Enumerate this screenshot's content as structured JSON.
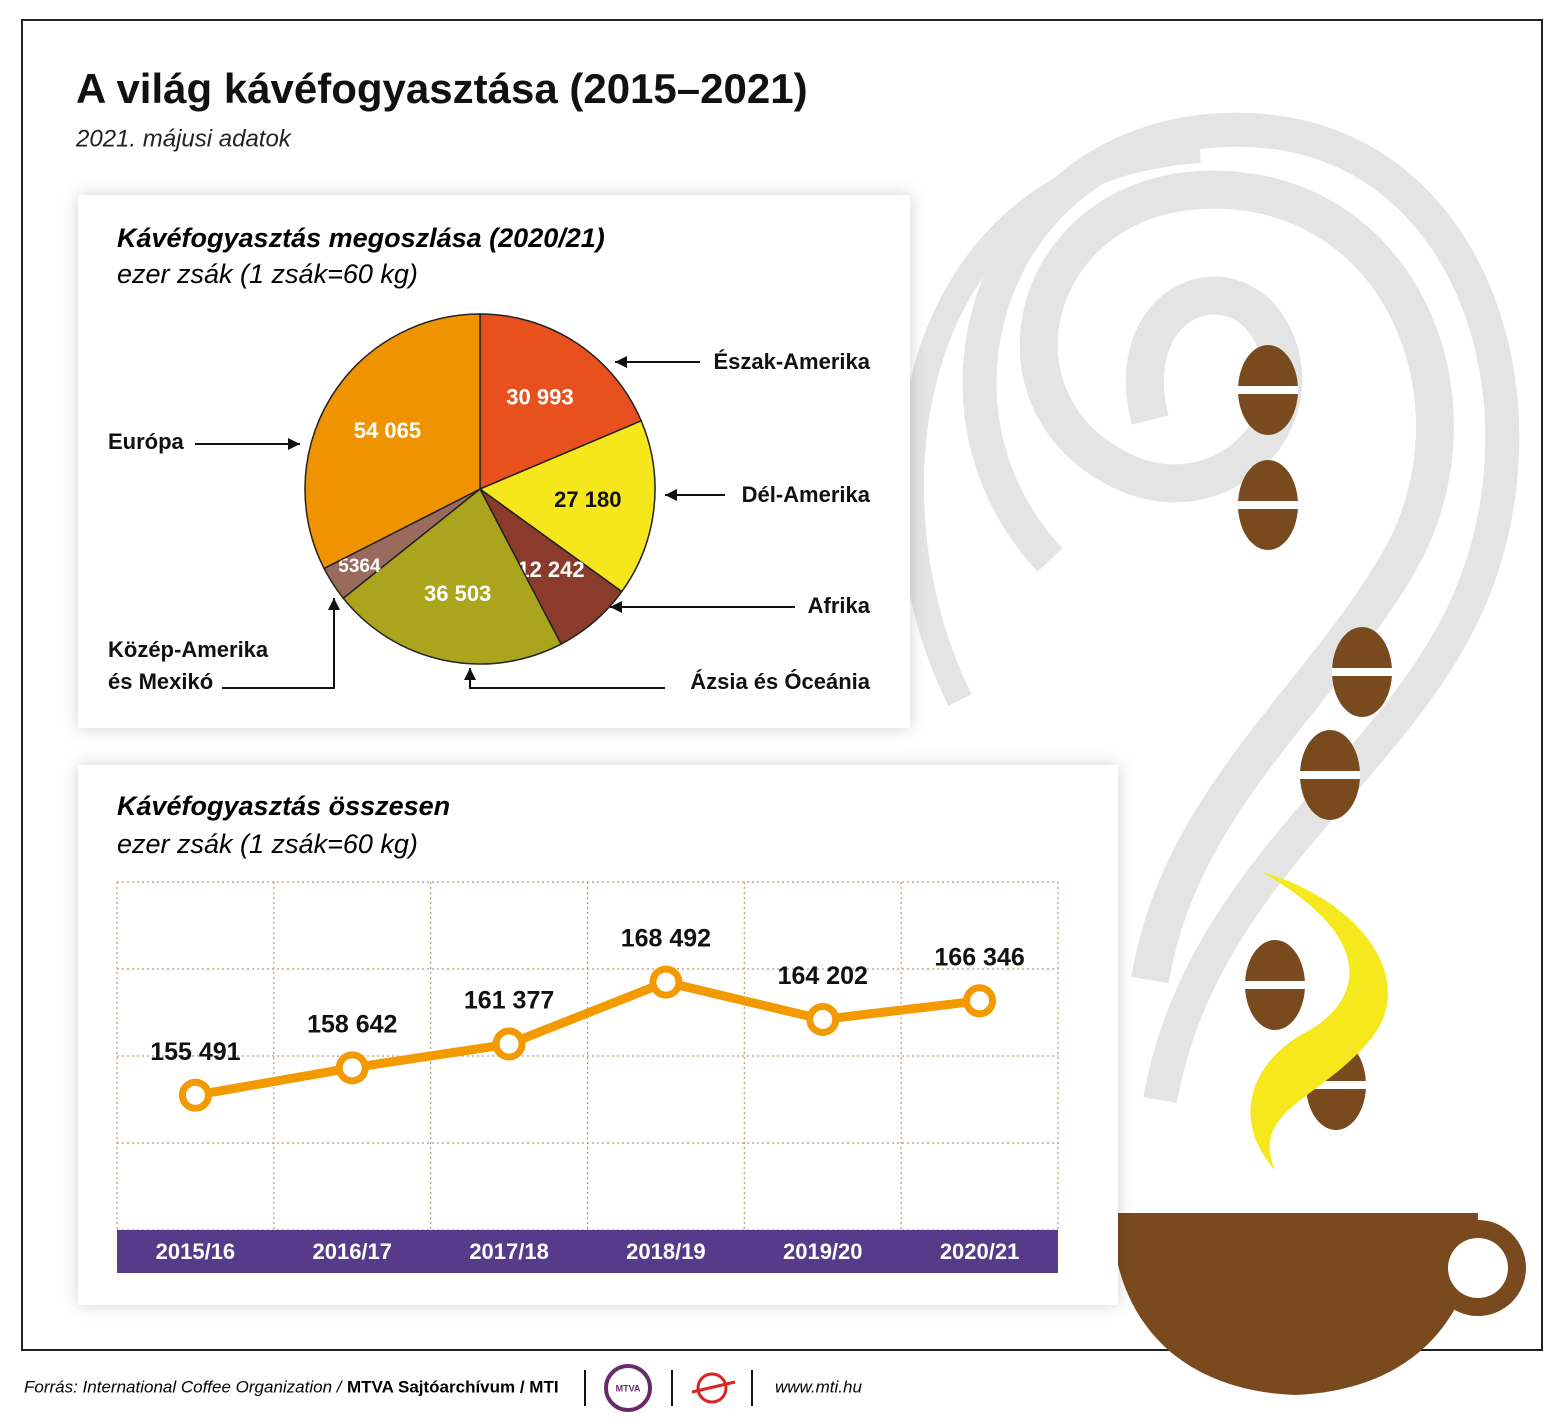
{
  "title": "A világ kávéfogyasztása (2015–2021)",
  "subtitle": "2021. májusi adatok",
  "chart_data": [
    {
      "type": "pie",
      "title": "Kávéfogyasztás megoszlása (2020/21)",
      "subtitle": "ezer zsák (1 zsák=60 kg)",
      "categories": [
        "Észak-Amerika",
        "Dél-Amerika",
        "Afrika",
        "Ázsia és Óceánia",
        "Közép-Amerika és Mexikó",
        "Európa"
      ],
      "values": [
        30993,
        27180,
        12242,
        36503,
        5364,
        54065
      ],
      "value_labels": [
        "30 993",
        "27 180",
        "12 242",
        "36 503",
        "5364",
        "54 065"
      ],
      "colors": [
        "#e8501e",
        "#f6e61c",
        "#8a3b2b",
        "#aba41d",
        "#9a6a5d",
        "#f09300"
      ]
    },
    {
      "type": "line",
      "title": "Kávéfogyasztás összesen",
      "subtitle": "ezer zsák (1 zsák=60 kg)",
      "categories": [
        "2015/16",
        "2016/17",
        "2017/18",
        "2018/19",
        "2019/20",
        "2020/21"
      ],
      "values": [
        155491,
        158642,
        161377,
        168492,
        164202,
        166346
      ],
      "value_labels": [
        "155 491",
        "158 642",
        "161 377",
        "168 492",
        "164 202",
        "166 346"
      ],
      "color": "#f29a00",
      "ylim": [
        140000,
        180000
      ],
      "yticks": [
        140000,
        150000,
        160000,
        170000,
        180000
      ],
      "grid": true
    }
  ],
  "footer": {
    "source": "Forrás: International Coffee Organization /",
    "agency": "MTVA Sajtóarchívum / MTI",
    "logo": "MTVA",
    "url": "www.mti.hu"
  }
}
